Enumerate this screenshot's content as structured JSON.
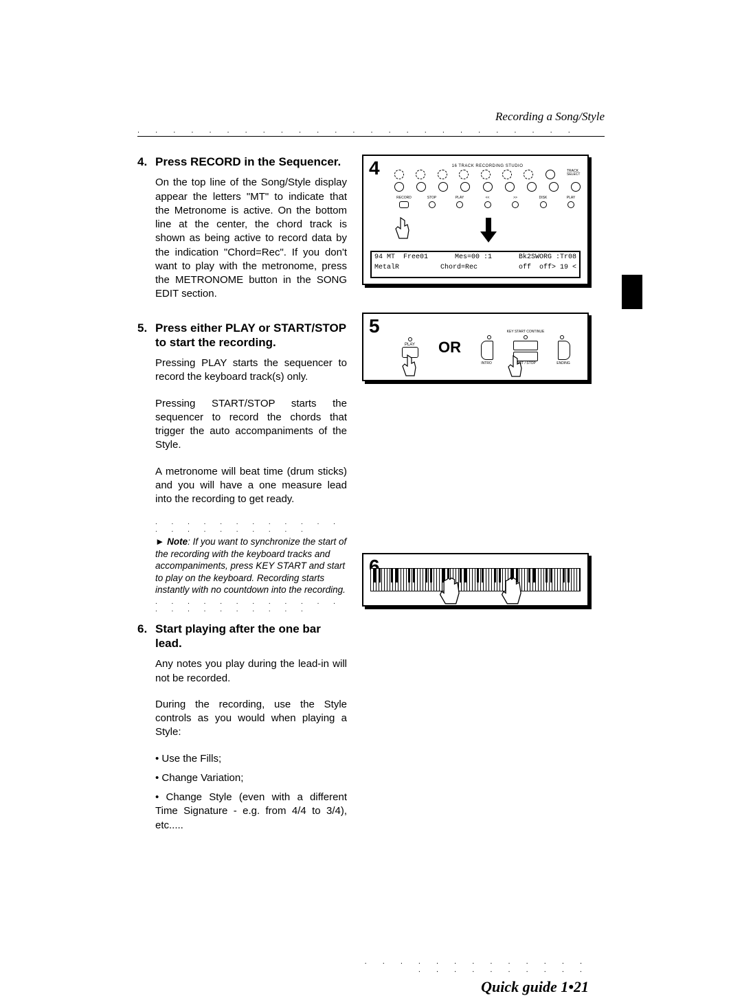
{
  "header": {
    "section_title": "Recording a Song/Style"
  },
  "steps": [
    {
      "num": "4.",
      "title": "Press RECORD in the Sequencer.",
      "paras": [
        "On the top line of the Song/Style display appear the letters \"MT\" to indicate that the Metronome is active.  On the bottom line at the center, the chord track is shown as being active to record data by the indication \"Chord=Rec\".  If you don't want to play with the metronome, press the METRONOME button in the SONG EDIT section."
      ]
    },
    {
      "num": "5.",
      "title": "Press either PLAY or START/STOP to start the recording.",
      "paras": [
        "Pressing PLAY starts the sequencer to record the keyboard track(s) only.",
        "Pressing START/STOP starts the sequencer to record the chords that trigger the auto accompaniments of the Style.",
        "A metronome will beat time (drum sticks) and you will have a one measure lead into the recording to get ready."
      ],
      "note": "Note:  If you want to synchronize the start of the recording with the keyboard tracks and accompaniments, press KEY START and start to play on the keyboard.  Recording starts instantly with no countdown into the recording."
    },
    {
      "num": "6.",
      "title": "Start playing after the one bar lead.",
      "paras": [
        "Any notes you play during the lead-in will not be recorded.",
        "During the recording, use the Style controls as you would when playing a Style:"
      ],
      "bullets": [
        "• Use the Fills;",
        "• Change Variation;",
        "• Change Style (even with a different Time Signature - e.g. from 4/4 to 3/4), etc....."
      ]
    }
  ],
  "figures": {
    "fig4": {
      "num": "4",
      "studio_title": "16 TRACK RECORDING STUDIO",
      "track_select": "TRACK\nSELECT",
      "btn_labels": [
        "RECORD",
        "STOP",
        "PLAY",
        "<<",
        ">>",
        "DISK",
        "PLAY"
      ],
      "btn_sub": [
        "",
        "",
        "",
        "MEASURE",
        "",
        "",
        "ALL SONGS"
      ],
      "lcd_top_left": "94 MT  Free01",
      "lcd_top_mid": "Mes=00 :1",
      "lcd_top_right": "Bk2SWORG :Tr08",
      "lcd_bot_left": "MetalR",
      "lcd_bot_mid": "Chord=Rec",
      "lcd_bot_right": "off  off> 19 <"
    },
    "fig5": {
      "num": "5",
      "or": "OR",
      "play_label": "PLAY",
      "key_start": "KEY START\nCONTINUE",
      "intro": "INTRO",
      "ending": "ENDING",
      "start_stop": "START / STOP"
    },
    "fig6": {
      "num": "6"
    }
  },
  "footer": {
    "text": "Quick guide  1•21"
  }
}
